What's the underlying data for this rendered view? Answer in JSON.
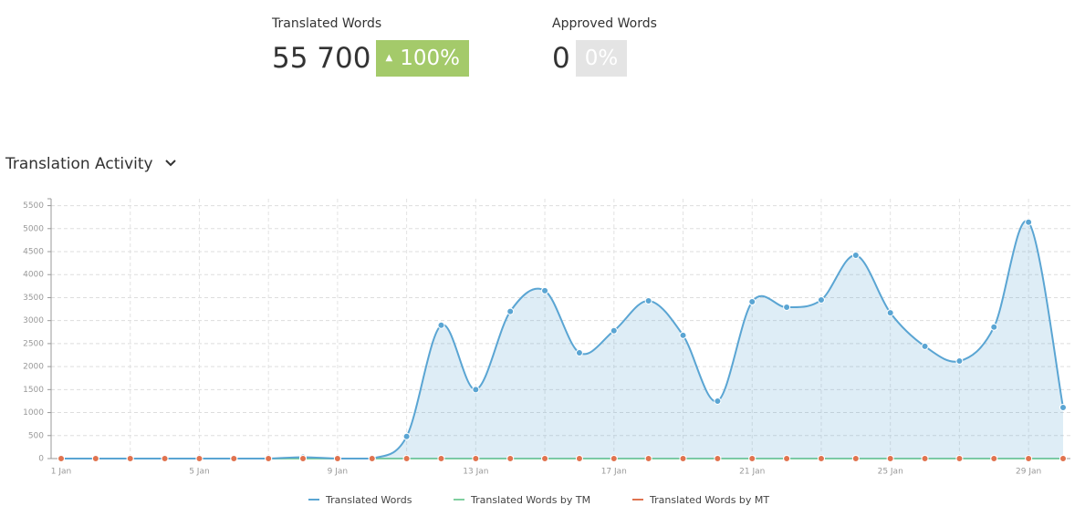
{
  "stats": [
    {
      "label": "Translated Words",
      "value": "55 700",
      "change": "100%"
    },
    {
      "label": "Approved Words",
      "value": "0",
      "change": "0%"
    }
  ],
  "section_title": "Translation Activity",
  "chart_data": {
    "type": "line",
    "smooth": true,
    "area": true,
    "markers": true,
    "categories": [
      "1 Jan",
      null,
      null,
      null,
      "5 Jan",
      null,
      null,
      null,
      "9 Jan",
      null,
      null,
      null,
      "13 Jan",
      null,
      null,
      null,
      "17 Jan",
      null,
      null,
      null,
      "21 Jan",
      null,
      null,
      null,
      "25 Jan",
      null,
      null,
      null,
      "29 Jan",
      null
    ],
    "series": [
      {
        "name": "Translated Words",
        "color": "#5aa5d3",
        "values": [
          0,
          0,
          0,
          0,
          0,
          0,
          0,
          30,
          0,
          0,
          480,
          2900,
          1500,
          3200,
          3650,
          2300,
          2780,
          3430,
          2680,
          1250,
          3410,
          3290,
          3450,
          4420,
          3170,
          2440,
          2120,
          2860,
          5140,
          1110
        ]
      },
      {
        "name": "Translated Words by TM",
        "color": "#7fcf9f",
        "values": [
          0,
          0,
          0,
          0,
          0,
          0,
          0,
          0,
          0,
          0,
          0,
          0,
          0,
          0,
          0,
          0,
          0,
          0,
          0,
          0,
          0,
          0,
          0,
          0,
          0,
          0,
          0,
          0,
          0,
          0
        ]
      },
      {
        "name": "Translated Words by MT",
        "color": "#e0734f",
        "values": [
          0,
          0,
          0,
          0,
          0,
          0,
          0,
          0,
          0,
          0,
          0,
          0,
          0,
          0,
          0,
          0,
          0,
          0,
          0,
          0,
          0,
          0,
          0,
          0,
          0,
          0,
          0,
          0,
          0,
          0
        ]
      }
    ],
    "ylim": [
      0,
      5650
    ],
    "yticks": [
      0,
      500,
      1000,
      1500,
      2000,
      2500,
      3000,
      3500,
      4000,
      4500,
      5000,
      5500
    ],
    "grid": true
  }
}
